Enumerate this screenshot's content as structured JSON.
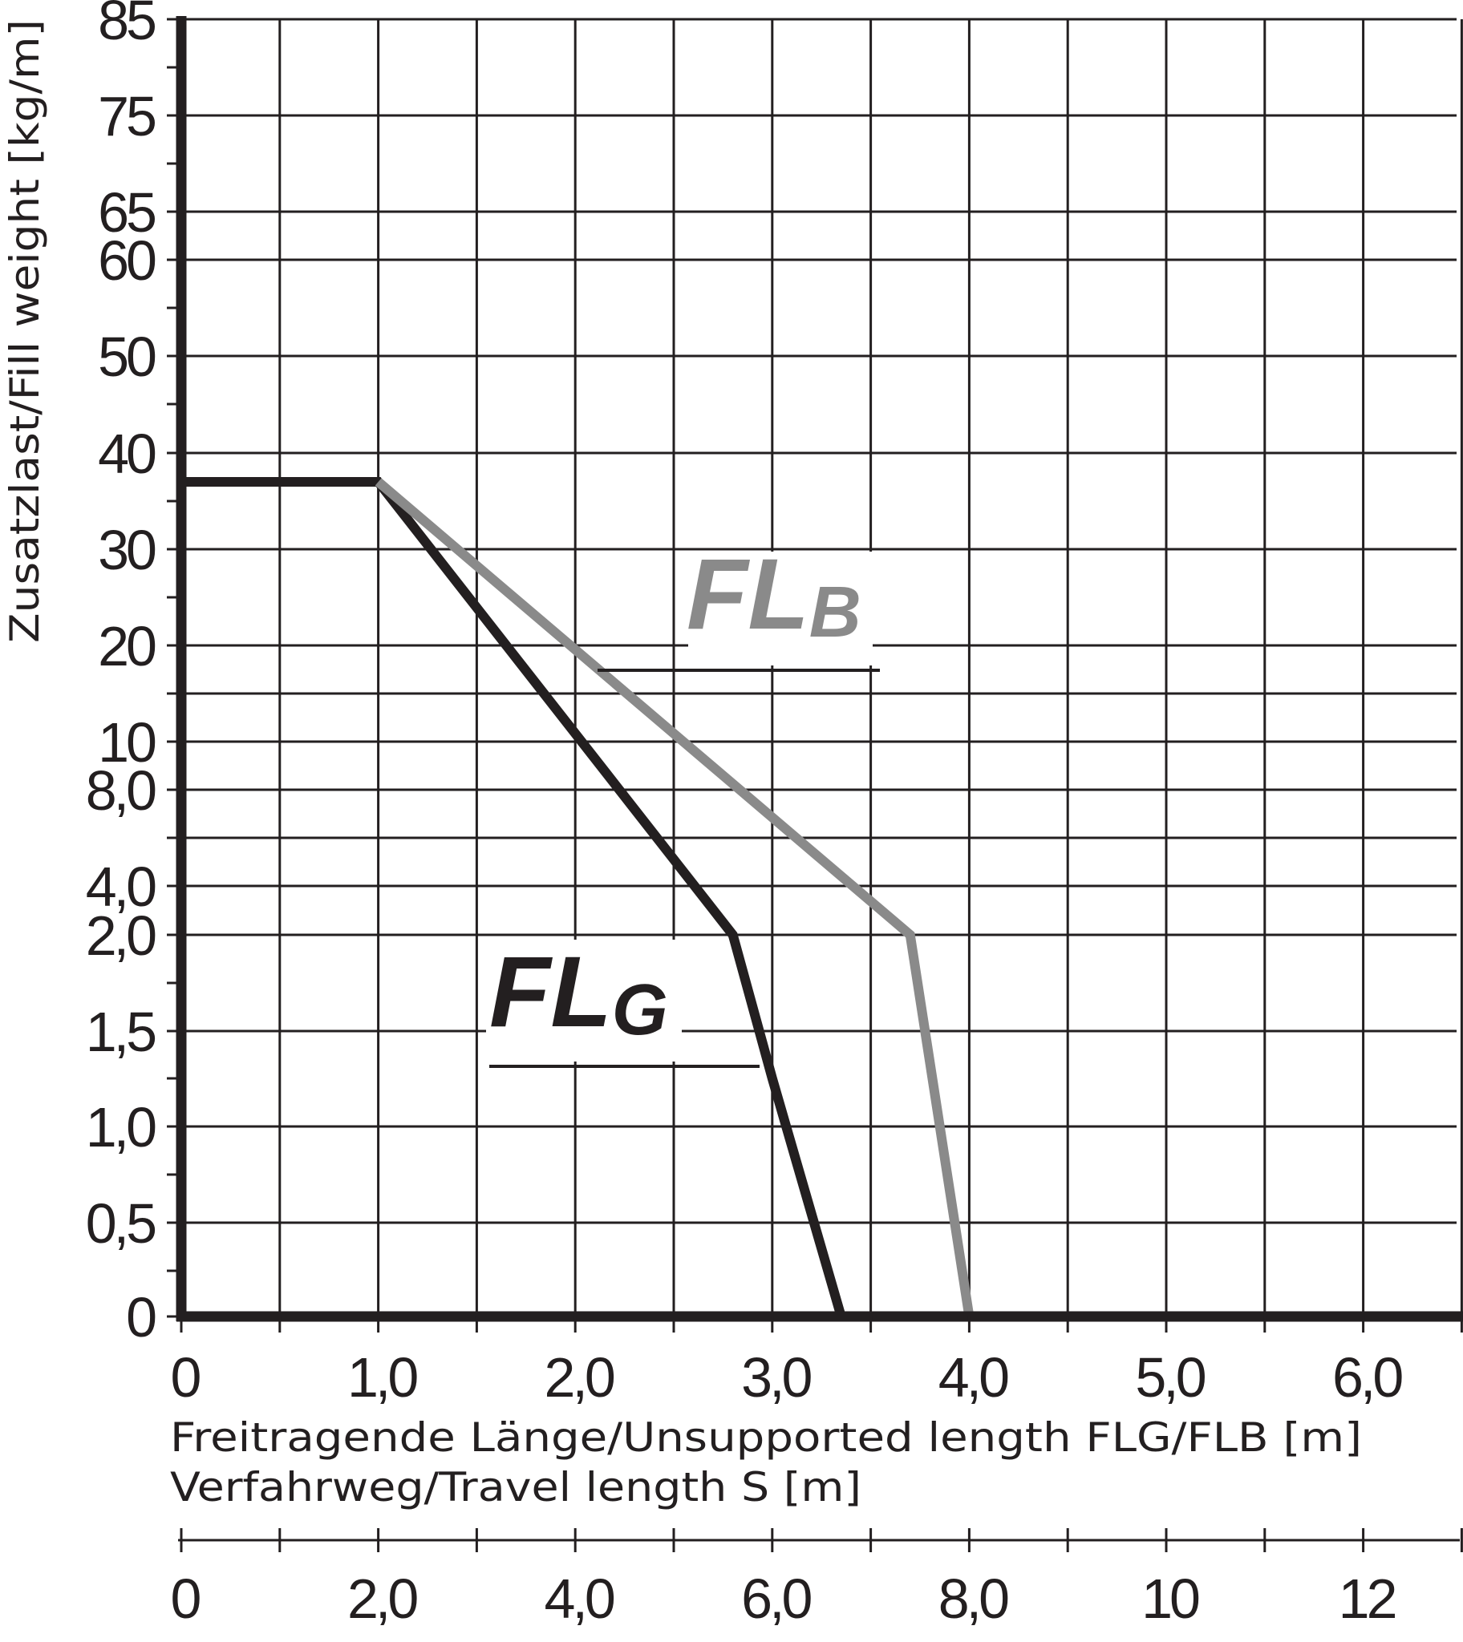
{
  "chart_data": {
    "type": "line",
    "xlabel": "Freitragende Länge/Unsupported length FLG/FLB [m]",
    "x2label": "Verfahrweg/Travel length S [m]",
    "ylabel": "Zusatzlast/Fill weight [kg/m]",
    "xlim": [
      0,
      6.5
    ],
    "x2lim": [
      0,
      13
    ],
    "x_ticks": [
      {
        "value": 0,
        "label": "0"
      },
      {
        "value": 1,
        "label": "1,0"
      },
      {
        "value": 2,
        "label": "2,0"
      },
      {
        "value": 3,
        "label": "3,0"
      },
      {
        "value": 4,
        "label": "4,0"
      },
      {
        "value": 5,
        "label": "5,0"
      },
      {
        "value": 6,
        "label": "6,0"
      }
    ],
    "x_gridlines": [
      0,
      0.5,
      1,
      1.5,
      2,
      2.5,
      3,
      3.5,
      4,
      4.5,
      5,
      5.5,
      6,
      6.5
    ],
    "x2_ticks": [
      {
        "value": 0,
        "label": "0"
      },
      {
        "value": 2,
        "label": "2,0"
      },
      {
        "value": 4,
        "label": "4,0"
      },
      {
        "value": 6,
        "label": "6,0"
      },
      {
        "value": 8,
        "label": "8,0"
      },
      {
        "value": 10,
        "label": "10"
      },
      {
        "value": 12,
        "label": "12"
      }
    ],
    "y_scale": "non-uniform",
    "y_gridlines": [
      85,
      75,
      65,
      60,
      50,
      40,
      30,
      20,
      15,
      10,
      8,
      6,
      4,
      2,
      1.5,
      1,
      0.5,
      0
    ],
    "y_ticks": [
      {
        "value": 85,
        "label": "85"
      },
      {
        "value": 75,
        "label": "75"
      },
      {
        "value": 65,
        "label": "65"
      },
      {
        "value": 60,
        "label": "60"
      },
      {
        "value": 50,
        "label": "50"
      },
      {
        "value": 40,
        "label": "40"
      },
      {
        "value": 30,
        "label": "30"
      },
      {
        "value": 20,
        "label": "20"
      },
      {
        "value": 10,
        "label": "10"
      },
      {
        "value": 8,
        "label": "8,0"
      },
      {
        "value": 4,
        "label": "4,0"
      },
      {
        "value": 2,
        "label": "2,0"
      },
      {
        "value": 1.5,
        "label": "1,5"
      },
      {
        "value": 1,
        "label": "1,0"
      },
      {
        "value": 0.5,
        "label": "0,5"
      },
      {
        "value": 0,
        "label": "0"
      }
    ],
    "grid": true,
    "series": [
      {
        "name": "FL",
        "subscript": "G",
        "color": "#231f20",
        "x": [
          0,
          1.0,
          2.8,
          3.0,
          3.35
        ],
        "y": [
          37,
          37,
          2.0,
          1.25,
          0
        ]
      },
      {
        "name": "FL",
        "subscript": "B",
        "color": "#8a8a8a",
        "x": [
          1.0,
          3.7,
          4.0
        ],
        "y": [
          37,
          2.0,
          0
        ]
      }
    ]
  }
}
